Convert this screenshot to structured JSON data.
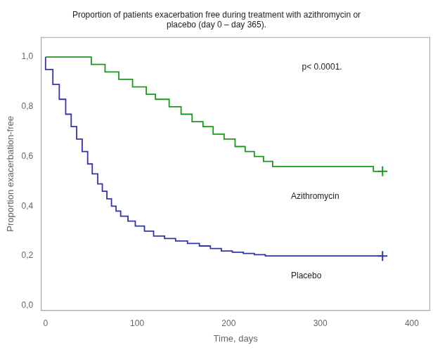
{
  "chart_data": {
    "type": "line",
    "title": "Proportion of patients exacerbation free during treatment with azithromycin or\nplacebo (day 0 – day 365).",
    "xlabel": "Time, days",
    "ylabel": "Proportion exacerbation-free",
    "xlim": [
      -5,
      420
    ],
    "ylim": [
      -0.02,
      1.08
    ],
    "xticks": [
      0,
      100,
      200,
      300,
      400
    ],
    "yticks": [
      {
        "value": 0.0,
        "label": "0,0"
      },
      {
        "value": 0.2,
        "label": "0,2"
      },
      {
        "value": 0.4,
        "label": "0,4"
      },
      {
        "value": 0.6,
        "label": "0,6"
      },
      {
        "value": 0.8,
        "label": "0,8"
      },
      {
        "value": 1.0,
        "label": "1,0"
      }
    ],
    "grid": false,
    "series": [
      {
        "color": "#1a9a1a",
        "x": [
          0,
          50,
          50,
          65,
          65,
          80,
          80,
          95,
          95,
          110,
          110,
          120,
          120,
          135,
          135,
          148,
          148,
          160,
          160,
          172,
          172,
          183,
          183,
          195,
          195,
          207,
          207,
          218,
          218,
          228,
          228,
          238,
          238,
          248,
          248,
          258,
          258,
          268,
          268,
          278,
          278,
          288,
          288,
          298,
          298,
          308,
          308,
          318,
          318,
          328,
          328,
          338,
          338,
          348,
          348,
          358,
          358,
          368
        ],
        "values": [
          1.0,
          1.0,
          0.97,
          0.97,
          0.94,
          0.94,
          0.91,
          0.91,
          0.88,
          0.88,
          0.85,
          0.85,
          0.83,
          0.83,
          0.8,
          0.8,
          0.77,
          0.77,
          0.74,
          0.74,
          0.72,
          0.72,
          0.69,
          0.69,
          0.67,
          0.67,
          0.64,
          0.64,
          0.62,
          0.62,
          0.6,
          0.6,
          0.58,
          0.58,
          0.56,
          0.56,
          0.56,
          0.56,
          0.56,
          0.56,
          0.56,
          0.56,
          0.56,
          0.56,
          0.56,
          0.56,
          0.56,
          0.56,
          0.56,
          0.56,
          0.56,
          0.56,
          0.56,
          0.56,
          0.56,
          0.56,
          0.54,
          0.54
        ]
      },
      {
        "color": "#3333aa",
        "x": [
          0,
          0,
          8,
          8,
          15,
          15,
          22,
          22,
          28,
          28,
          34,
          34,
          40,
          40,
          46,
          46,
          51,
          51,
          57,
          57,
          62,
          62,
          67,
          67,
          72,
          72,
          77,
          77,
          82,
          82,
          90,
          90,
          98,
          98,
          108,
          108,
          118,
          118,
          130,
          130,
          142,
          142,
          155,
          155,
          168,
          168,
          180,
          180,
          192,
          192,
          204,
          204,
          216,
          216,
          228,
          228,
          240,
          240,
          252,
          252,
          262,
          262,
          272,
          272,
          368
        ],
        "values": [
          1.0,
          0.95,
          0.95,
          0.89,
          0.89,
          0.83,
          0.83,
          0.77,
          0.77,
          0.72,
          0.72,
          0.67,
          0.67,
          0.62,
          0.62,
          0.57,
          0.57,
          0.53,
          0.53,
          0.49,
          0.49,
          0.46,
          0.46,
          0.43,
          0.43,
          0.4,
          0.4,
          0.38,
          0.38,
          0.36,
          0.36,
          0.34,
          0.34,
          0.32,
          0.32,
          0.3,
          0.3,
          0.28,
          0.28,
          0.27,
          0.27,
          0.26,
          0.26,
          0.25,
          0.25,
          0.24,
          0.24,
          0.23,
          0.23,
          0.22,
          0.22,
          0.215,
          0.215,
          0.21,
          0.21,
          0.205,
          0.205,
          0.2,
          0.2,
          0.2,
          0.2,
          0.2,
          0.2,
          0.2,
          0.2
        ]
      },
      {
        "type": "scatter",
        "marker": "plus",
        "color": "#1a9a1a",
        "x": [
          368
        ],
        "values": [
          0.54
        ]
      },
      {
        "type": "scatter",
        "marker": "plus",
        "color": "#3333aa",
        "x": [
          368
        ],
        "values": [
          0.2
        ]
      }
    ],
    "annotations": [
      {
        "text": "Azithromycin",
        "x": 268,
        "y": 0.43
      },
      {
        "text": "Placebo",
        "x": 268,
        "y": 0.11
      },
      {
        "text": "p< 0.0001.",
        "x": 280,
        "y": 0.95
      }
    ]
  }
}
